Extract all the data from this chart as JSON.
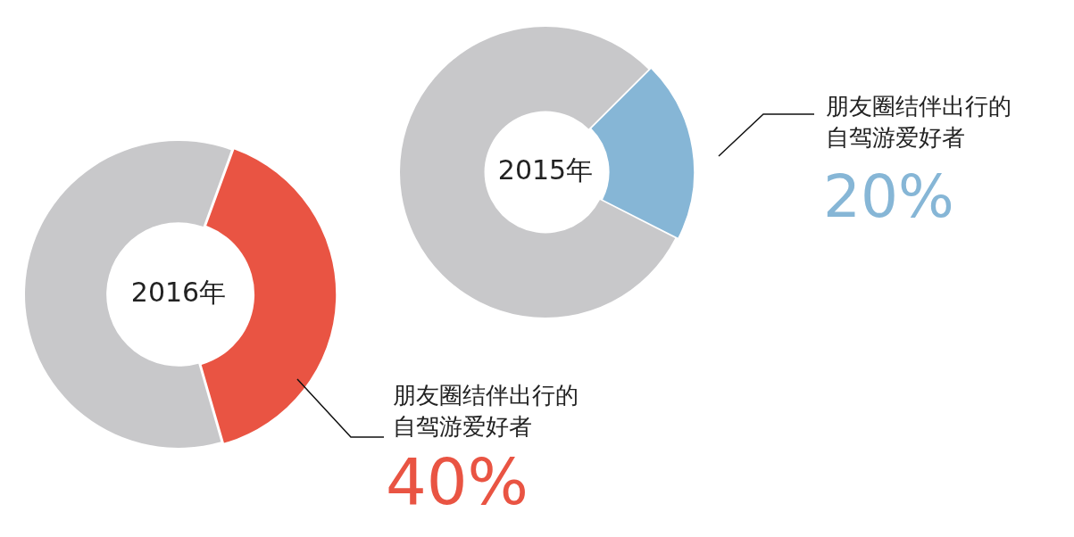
{
  "chart_data": [
    {
      "type": "donut",
      "title": "2015年",
      "categories": [
        "朋友圈结伴出行的自驾游爱好者",
        null
      ],
      "values": [
        20,
        80
      ],
      "colors": [
        "#86b6d6",
        "#c8c8ca"
      ],
      "value_labels": [
        "20%",
        null
      ]
    },
    {
      "type": "donut",
      "title": "2016年",
      "categories": [
        "朋友圈结伴出行的自驾游爱好者",
        null
      ],
      "values": [
        40,
        60
      ],
      "colors": [
        "#e95443",
        "#c8c8ca"
      ],
      "value_labels": [
        "40%",
        null
      ]
    }
  ]
}
